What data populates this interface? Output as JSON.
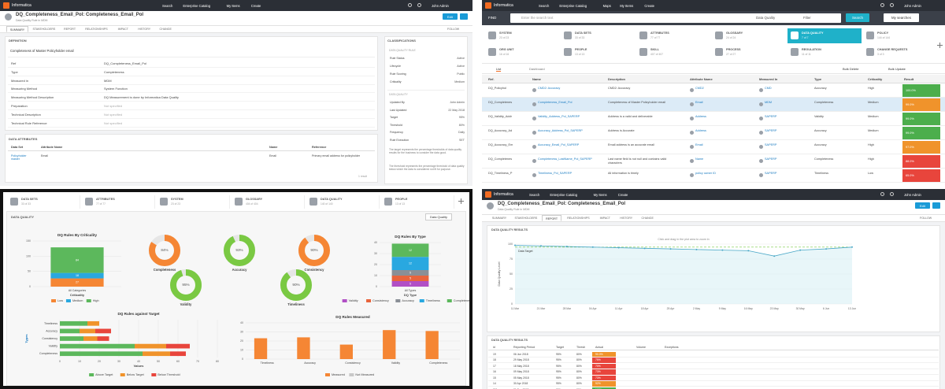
{
  "detail_page": {
    "header": {
      "brand": "Informatica",
      "nav": [
        "Search",
        "Enterprise Catalog",
        "My Items",
        "Create"
      ],
      "user": "John Admin"
    },
    "title": "DQ_Completeness_Email_Pol: Completeness_Email_Pol",
    "subtitle": "Data Quality Rule in MDM",
    "edit": "Edit",
    "tabs": [
      "SUMMARY",
      "STAKEHOLDERS",
      "REPORT",
      "RELATIONSHIPS",
      "IMPACT",
      "HISTORY",
      "CHANGE"
    ],
    "active_tab": 0,
    "follow": "FOLLOW",
    "definition": {
      "heading": "DEFINITION",
      "text": "Completeness of Master Policyholder email",
      "fields": [
        [
          "Ref",
          "DQ_Completeness_Email_Pol"
        ],
        [
          "Type",
          "Completeness"
        ],
        [
          "Measured in",
          "MDM"
        ],
        [
          "Measuring Method",
          "System Function"
        ],
        [
          "Measuring Method Description",
          "DQ Measurement is done by Informatica Data Quality"
        ],
        [
          "Preparation",
          "Not specified"
        ],
        [
          "Technical Description",
          "Not specified"
        ],
        [
          "Technical Rule Reference",
          "Not specified"
        ]
      ]
    },
    "attributes": {
      "heading": "DATA ATTRIBUTES",
      "columns": [
        "Data Set",
        "Attribute Name",
        "Name",
        "Reference"
      ],
      "rows": [
        [
          "Policyholder master",
          "Email",
          "Email",
          "Primary email address for policyholder"
        ]
      ],
      "footer": "1 result"
    },
    "classifications": {
      "heading": "CLASSIFICATIONS",
      "sub": "DATA QUALITY RULE",
      "fields": [
        [
          "Rule Status",
          "Active"
        ],
        [
          "Lifecycle",
          "Active"
        ],
        [
          "Rule Scoring",
          "Public"
        ],
        [
          "Criticality",
          "Medium"
        ]
      ]
    },
    "quality": {
      "heading": "DATA QUALITY",
      "fields": [
        [
          "Updated By",
          "John Admin"
        ],
        [
          "Last Updated",
          "22 May 2018"
        ],
        [
          "Target",
          "95%"
        ],
        [
          "Threshold",
          "80%"
        ],
        [
          "Frequency",
          "Daily"
        ],
        [
          "Rule Execution",
          "SET"
        ]
      ],
      "notes": [
        "The target represents the percentage thresholds of data quality results for the business to consider the data good.",
        "The threshold represents the percentage threshold of data quality below which the data is considered not fit for purpose."
      ]
    }
  },
  "catalog_page": {
    "header": {
      "brand": "Informatica",
      "nav": [
        "Search",
        "Enterprise Catalog",
        "Maps",
        "My Items",
        "Create"
      ],
      "user": "John Admin"
    },
    "find": "FIND",
    "search_placeholder": "Enter the search text",
    "scope": "Data Quality",
    "filter": "Filter",
    "search": "Search",
    "my_searches": "My searches",
    "tiles": [
      {
        "name": "SYSTEM",
        "count": "23 of 23"
      },
      {
        "name": "DATA SETS",
        "count": "33 of 33"
      },
      {
        "name": "ATTRIBUTES",
        "count": "77 of 77"
      },
      {
        "name": "GLOSSARY",
        "count": "24 of 24"
      },
      {
        "name": "DATA QUALITY",
        "count": "7 of 7"
      },
      {
        "name": "POLICY",
        "count": "144 of 144"
      },
      {
        "name": "ORG UNIT",
        "count": "16 of 16"
      },
      {
        "name": "PEOPLE",
        "count": "13 of 13"
      },
      {
        "name": "SKILL",
        "count": "407 of 407"
      },
      {
        "name": "PROCESS",
        "count": "27 of 27"
      },
      {
        "name": "REGULATION",
        "count": "11 of 11"
      },
      {
        "name": "CHANGE REQUESTS",
        "count": "3 of 3"
      }
    ],
    "active_tile": 4,
    "views": [
      "List",
      "Dashboard"
    ],
    "actions": [
      "Bulk Delete",
      "Bulk Update"
    ],
    "columns": [
      "Ref.",
      "Name",
      "Description",
      "Attribute Name",
      "Measured In",
      "Type",
      "Criticality",
      "Result"
    ],
    "selected_row": 1,
    "rows": [
      {
        "cells": [
          "DQ_Policyhol",
          "CMD2: Accuracy",
          "CMD2: Accuracy",
          "CMD2",
          "CMD",
          "Accuracy",
          "High",
          "100.0%"
        ],
        "result_color": "#4cae4c"
      },
      {
        "cells": [
          "DQ_Completenes",
          "Completeness_Email_Pol",
          "Completeness of Master Policyholder email",
          "Email",
          "MDM",
          "Completeness",
          "Medium",
          "99.0%"
        ],
        "result_color": "#f0932b"
      },
      {
        "cells": [
          "DQ_Validity_Addr",
          "Validity_Address_Pol_SAPERP",
          "Address is a valid and deliverable",
          "Address",
          "SAPERP",
          "Validity",
          "Medium",
          "99.0%"
        ],
        "result_color": "#4cae4c"
      },
      {
        "cells": [
          "DQ_Accuracy_Ad",
          "Accuracy_Address_Pol_SAPERP",
          "Address is Accurate",
          "Address",
          "SAPERP",
          "Accuracy",
          "Medium",
          "99.0%"
        ],
        "result_color": "#4cae4c"
      },
      {
        "cells": [
          "DQ_Accuracy_Em",
          "Accuracy_Email_Pol_SAPERP",
          "Email address is an accurate email",
          "Email",
          "SAPERP",
          "Accuracy",
          "High",
          "97.0%"
        ],
        "result_color": "#f0932b"
      },
      {
        "cells": [
          "DQ_Completenes",
          "Completeness_LastName_Pol_SAPERP",
          "Last name field is not null and contains valid characters",
          "Name",
          "SAPERP",
          "Completeness",
          "High",
          "88.0%"
        ],
        "result_color": "#e8453c"
      },
      {
        "cells": [
          "DQ_Timeliness_P",
          "Timeliness_Pol_SAPERP",
          "All information is timely",
          "policy owner ID",
          "SAPERP",
          "Timeliness",
          "Low",
          "65.0%"
        ],
        "result_color": "#e8453c"
      }
    ]
  },
  "dashboard_page": {
    "tiles": [
      {
        "name": "DATA SETS",
        "count": "33 of 33"
      },
      {
        "name": "ATTRIBUTES",
        "count": "77 of 77"
      },
      {
        "name": "SYSTEM",
        "count": "23 of 23"
      },
      {
        "name": "GLOSSARY",
        "count": "404 of 404"
      },
      {
        "name": "DATA QUALITY",
        "count": "140 of 140"
      },
      {
        "name": "PEOPLE",
        "count": "13 of 13"
      }
    ],
    "heading": "DATA QUALITY",
    "scope": "Data Quality"
  },
  "report_page": {
    "header": {
      "brand": "Informatica",
      "nav": [
        "Search",
        "Enterprise Catalog",
        "My Items",
        "Create"
      ],
      "user": "John Admin"
    },
    "title": "DQ_Completeness_Email_Pol: Completeness_Email_Pol",
    "subtitle": "Data Quality Rule in MDM",
    "edit": "Edit",
    "tabs": [
      "SUMMARY",
      "STAKEHOLDERS",
      "REPORT",
      "RELATIONSHIPS",
      "IMPACT",
      "HISTORY",
      "CHANGE"
    ],
    "active_tab": 2,
    "follow": "FOLLOW",
    "results_heading": "DATA QUALITY RESULTS",
    "table_heading": "DATA QUALITY RESULTS",
    "columns": [
      "id",
      "Reporting Period",
      "Target",
      "Thresh",
      "Actual",
      "Volume",
      "Exceptions"
    ],
    "rows": [
      {
        "cells": [
          "19",
          "06 Jun 2018",
          "95%",
          "80%",
          "90.0%"
        ],
        "color": "#f0932b"
      },
      {
        "cells": [
          "18",
          "29 May 2018",
          "95%",
          "80%",
          "75%"
        ],
        "color": "#e8453c"
      },
      {
        "cells": [
          "17",
          "18 May 2018",
          "95%",
          "80%",
          "70%"
        ],
        "color": "#e8453c"
      },
      {
        "cells": [
          "16",
          "09 May 2018",
          "95%",
          "80%",
          "73%"
        ],
        "color": "#e8453c"
      },
      {
        "cells": [
          "15",
          "05 May 2018",
          "95%",
          "80%",
          "73%"
        ],
        "color": "#e8453c"
      },
      {
        "cells": [
          "14",
          "30 Apr 2018",
          "95%",
          "80%",
          "92%"
        ],
        "color": "#f0932b"
      },
      {
        "cells": [
          "201",
          "21 Dec 2017",
          "95%",
          "80%",
          "100%"
        ],
        "color": "#4cae4c"
      }
    ]
  },
  "chart_data": [
    {
      "type": "bar",
      "stacked": true,
      "title": "DQ Rules By Criticality",
      "categories": [
        "All Categories"
      ],
      "x_label": "Criticality",
      "series": [
        {
          "name": "Low",
          "color": "#f58634",
          "values": [
            27
          ]
        },
        {
          "name": "Medium",
          "color": "#29a8e0",
          "values": [
            18
          ]
        },
        {
          "name": "High",
          "color": "#5cb85c",
          "values": [
            84
          ]
        }
      ],
      "ylim": [
        0,
        150
      ],
      "yticks": [
        0,
        50,
        100,
        150
      ],
      "grid": true,
      "segment_labels": true
    },
    {
      "type": "donut",
      "categories": [
        "Completeness",
        "Accuracy",
        "Consistency",
        "Validity",
        "Timeliness"
      ],
      "values": [
        84,
        93,
        90,
        95,
        90
      ],
      "value_labels": [
        "84%",
        "93%",
        "90%",
        "95%",
        "90%"
      ],
      "colors": [
        "#f58634",
        "#7ac943",
        "#f58634",
        "#7ac943",
        "#7ac943"
      ]
    },
    {
      "type": "bar",
      "stacked": true,
      "title": "DQ Rules By Type",
      "categories": [
        "All Types"
      ],
      "x_label": "DQ Type",
      "series": [
        {
          "name": "Validity",
          "color": "#b14fc5",
          "values": [
            5
          ]
        },
        {
          "name": "Consistency",
          "color": "#e8643c",
          "values": [
            5
          ]
        },
        {
          "name": "Accuracy",
          "color": "#8a8f96",
          "values": [
            5
          ]
        },
        {
          "name": "Timeliness",
          "color": "#29a8e0",
          "values": [
            12
          ]
        },
        {
          "name": "Completeness",
          "color": "#5cb85c",
          "values": [
            12
          ]
        }
      ],
      "ylim": [
        0,
        40
      ],
      "yticks": [
        0,
        10,
        20,
        30,
        40
      ],
      "grid": true,
      "segment_labels": true
    },
    {
      "type": "bar",
      "stacked": true,
      "orientation": "horizontal",
      "title": "DQ Rules against Target",
      "categories": [
        "Timeliness",
        "Accuracy",
        "Consistency",
        "Validity",
        "Completeness"
      ],
      "x_label": "Values",
      "y_label": "Types",
      "series": [
        {
          "name": "Above Target",
          "color": "#5cb85c",
          "values": [
            14,
            10,
            12,
            38,
            42
          ]
        },
        {
          "name": "Below Target",
          "color": "#f0932b",
          "values": [
            6,
            8,
            7,
            16,
            14
          ]
        },
        {
          "name": "Below Threshold",
          "color": "#e8453c",
          "values": [
            0,
            8,
            6,
            12,
            8
          ]
        }
      ],
      "xlim": [
        0,
        80
      ],
      "xticks": [
        0,
        10,
        20,
        30,
        40,
        50,
        60,
        70,
        80
      ],
      "grid": true
    },
    {
      "type": "bar",
      "title": "DQ Rules Measured",
      "categories": [
        "Timeliness",
        "Accuracy",
        "Consistency",
        "Validity",
        "Completeness"
      ],
      "series": [
        {
          "name": "Measured",
          "color": "#f58634",
          "values": [
            23,
            24,
            16,
            32,
            31
          ]
        },
        {
          "name": "Not Measured",
          "color": "#c8c8c8",
          "values": [
            0,
            0,
            0,
            0,
            0
          ]
        }
      ],
      "ylim": [
        0,
        40
      ],
      "yticks": [
        0,
        10,
        20,
        30,
        40
      ],
      "grid": true
    },
    {
      "type": "line",
      "y_label": "Data Quality Level",
      "annotation": "Click and drag in the plot area to zoom in",
      "categories": [
        "11 Mar",
        "21 Mar",
        "28 Mar",
        "04 Apr",
        "11 Apr",
        "18 Apr",
        "25 Apr",
        "2 May",
        "9 May",
        "16 May",
        "23 May",
        "30 May",
        "6 Jun",
        "13 Jun"
      ],
      "values": [
        98,
        97,
        96,
        95,
        94,
        93,
        92,
        91,
        90,
        89,
        80,
        90,
        92,
        95
      ],
      "color": "#4aa8c7",
      "target": 95,
      "target_label": "Data Target",
      "target_color": "#7ac943",
      "ylim": [
        0,
        100
      ],
      "yticks": [
        0,
        25,
        50,
        75,
        100
      ],
      "grid": true
    }
  ]
}
